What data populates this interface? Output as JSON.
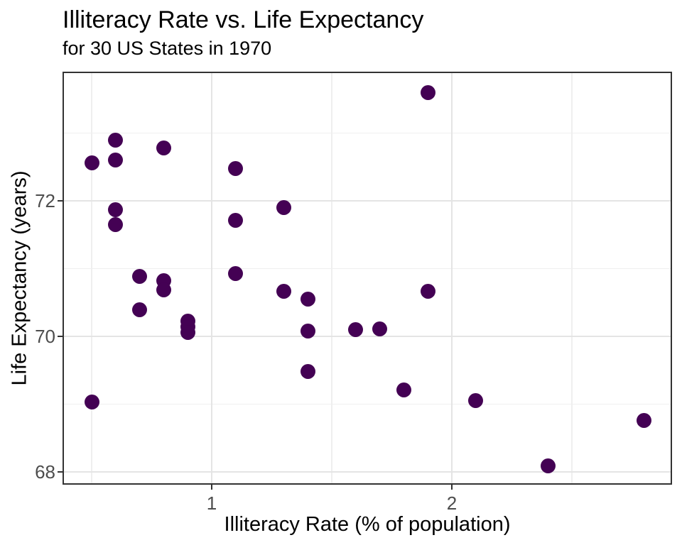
{
  "chart_data": {
    "type": "scatter",
    "title": "Illiteracy Rate vs. Life Expectancy",
    "subtitle": "for 30 US States in 1970",
    "xlabel": "Illiteracy Rate (% of population)",
    "ylabel": "Life Expectancy (years)",
    "xlim": [
      0.38,
      2.92
    ],
    "ylim": [
      67.81,
      73.89
    ],
    "x_major_ticks": [
      1,
      2
    ],
    "y_major_ticks": [
      68,
      70,
      72
    ],
    "x_minor_gridlines": [
      0.5,
      1.5,
      2.5
    ],
    "y_minor_gridlines": [
      69,
      71,
      73
    ],
    "grid": "major and minor gridlines, light gray on white panel with dark border",
    "legend": "none",
    "point_color": "#440154",
    "points": [
      {
        "x": 0.5,
        "y": 72.56
      },
      {
        "x": 0.6,
        "y": 72.9
      },
      {
        "x": 0.6,
        "y": 72.6
      },
      {
        "x": 0.8,
        "y": 72.78
      },
      {
        "x": 1.1,
        "y": 72.48
      },
      {
        "x": 0.6,
        "y": 71.87
      },
      {
        "x": 0.6,
        "y": 71.65
      },
      {
        "x": 1.3,
        "y": 71.9
      },
      {
        "x": 1.1,
        "y": 71.71
      },
      {
        "x": 1.9,
        "y": 73.6
      },
      {
        "x": 0.7,
        "y": 70.88
      },
      {
        "x": 0.8,
        "y": 70.82
      },
      {
        "x": 0.8,
        "y": 70.69
      },
      {
        "x": 0.7,
        "y": 70.39
      },
      {
        "x": 0.9,
        "y": 70.22
      },
      {
        "x": 0.9,
        "y": 70.14
      },
      {
        "x": 0.9,
        "y": 70.06
      },
      {
        "x": 1.1,
        "y": 70.93
      },
      {
        "x": 1.3,
        "y": 70.66
      },
      {
        "x": 1.4,
        "y": 70.55
      },
      {
        "x": 1.4,
        "y": 70.08
      },
      {
        "x": 1.6,
        "y": 70.1
      },
      {
        "x": 1.7,
        "y": 70.11
      },
      {
        "x": 1.8,
        "y": 69.21
      },
      {
        "x": 1.9,
        "y": 70.66
      },
      {
        "x": 1.4,
        "y": 69.48
      },
      {
        "x": 0.5,
        "y": 69.03
      },
      {
        "x": 2.1,
        "y": 69.05
      },
      {
        "x": 2.4,
        "y": 68.09
      },
      {
        "x": 2.8,
        "y": 68.76
      }
    ]
  }
}
